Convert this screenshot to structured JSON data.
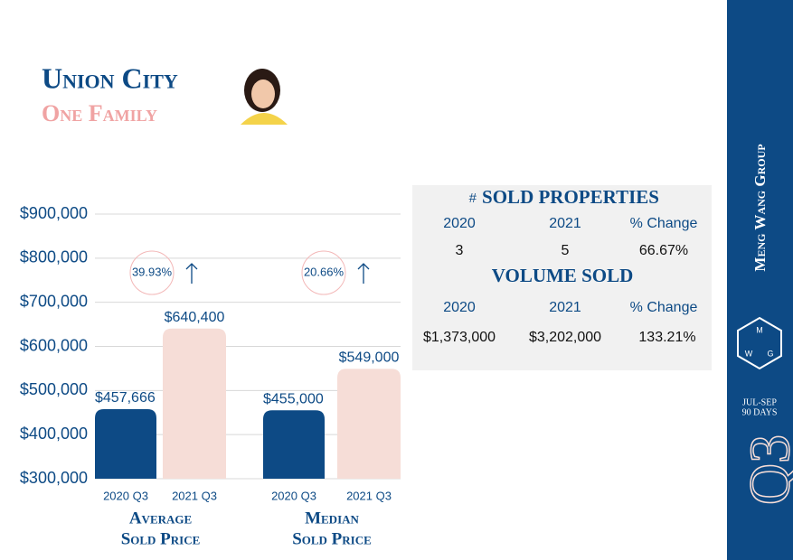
{
  "header": {
    "title": "Union City",
    "subtitle": "One Family"
  },
  "chart_data": {
    "type": "bar",
    "categories": [
      [
        "Average",
        "Sold Price"
      ],
      [
        "Median",
        "Sold Price"
      ]
    ],
    "series": [
      {
        "name": "2020 Q3",
        "color": "#0d4a85",
        "values": [
          457666,
          455000
        ],
        "value_labels": [
          "$457,666",
          "$455,000"
        ]
      },
      {
        "name": "2021 Q3",
        "color": "#f6ddd7",
        "values": [
          640400,
          549000
        ],
        "value_labels": [
          "$640,400",
          "$549,000"
        ]
      }
    ],
    "changes": [
      "39.93%",
      "20.66%"
    ],
    "ylim": [
      300000,
      900000
    ],
    "yticks": [
      {
        "value": 300000,
        "label": "$300,000"
      },
      {
        "value": 400000,
        "label": "$400,000"
      },
      {
        "value": 500000,
        "label": "$500,000"
      },
      {
        "value": 600000,
        "label": "$600,000"
      },
      {
        "value": 700000,
        "label": "$700,000"
      },
      {
        "value": 800000,
        "label": "$800,000"
      },
      {
        "value": 900000,
        "label": "$900,000"
      }
    ],
    "grid": true
  },
  "stats": [
    {
      "prefix": "#",
      "title": "SOLD PROPERTIES",
      "headers": [
        "2020",
        "2021",
        "% Change"
      ],
      "values": [
        "3",
        "5",
        "66.67%"
      ]
    },
    {
      "title": "VOLUME SOLD",
      "headers": [
        "2020",
        "2021",
        "% Change"
      ],
      "values": [
        "$1,373,000",
        "$3,202,000",
        "133.21%"
      ]
    }
  ],
  "sidebar": {
    "brand": "Meng Wang Group",
    "logo": [
      "M",
      "W",
      "G"
    ],
    "period": "JUL-SEP",
    "days": "90 DAYS",
    "quarter": "Q3"
  }
}
